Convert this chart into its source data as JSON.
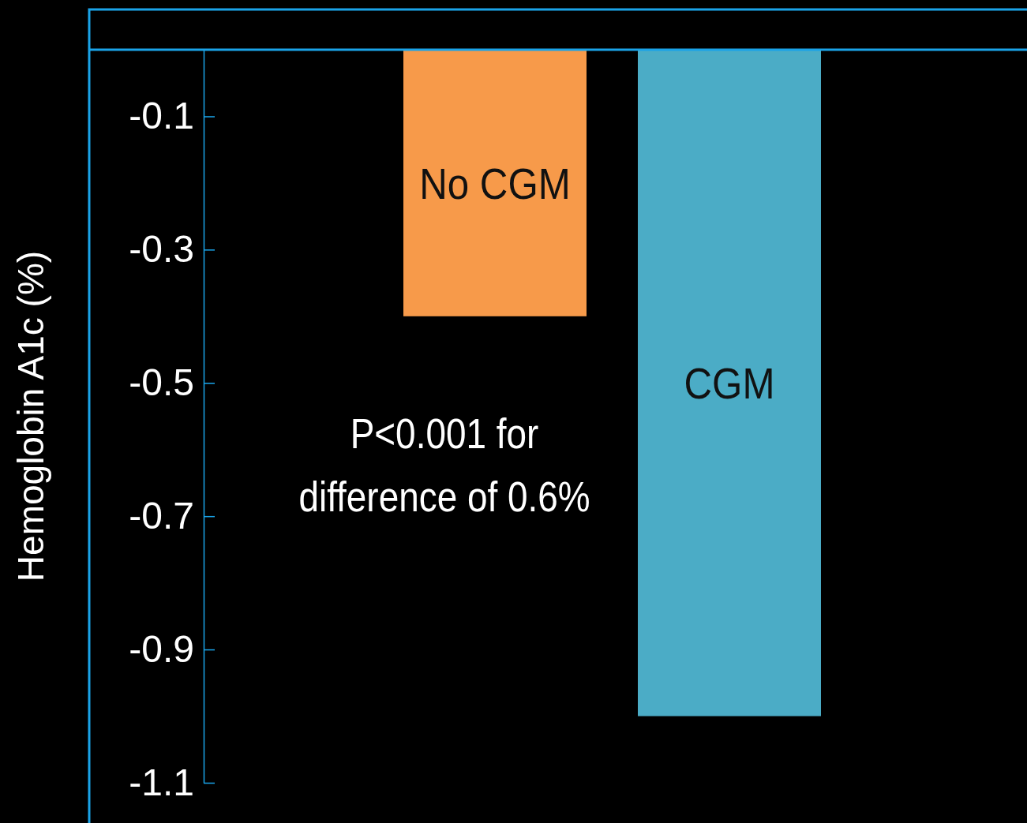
{
  "chart_data": {
    "type": "bar",
    "categories": [
      "No CGM",
      "CGM"
    ],
    "colors": [
      "#f79a4a",
      "#4bacc6"
    ],
    "values": [
      -0.4,
      -1.0
    ],
    "ylabel": "Hemoglobin A1c (%)",
    "ylim": [
      -1.1,
      0
    ],
    "yticks": [
      -0.1,
      -0.3,
      -0.5,
      -0.7,
      -0.9,
      -1.1
    ],
    "annotations": [
      "P<0.001 for difference of 0.6%"
    ]
  }
}
